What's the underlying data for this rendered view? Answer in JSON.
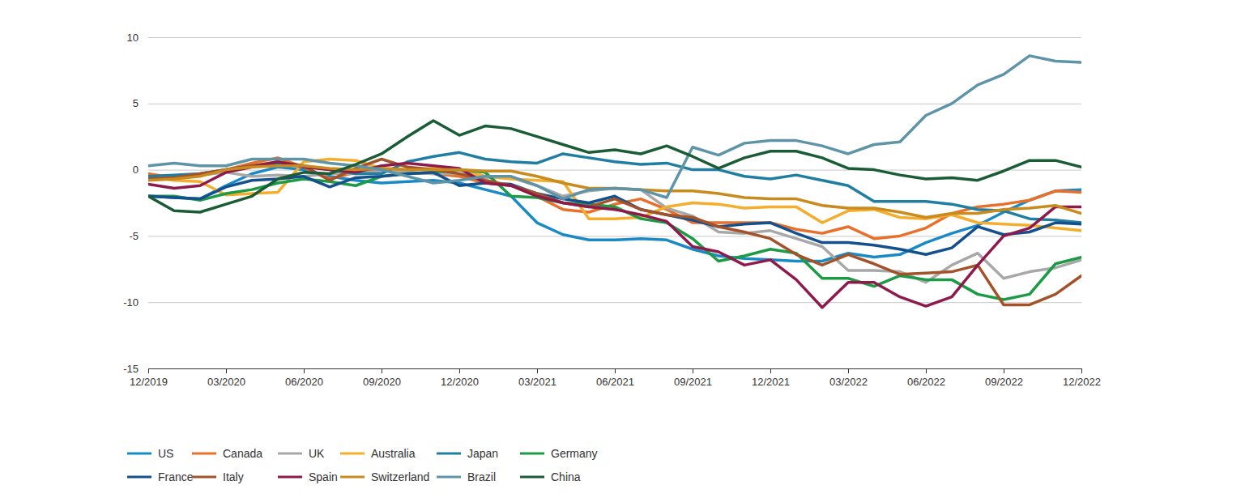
{
  "chart_data": {
    "type": "line",
    "categories": [
      "12/2019",
      null,
      null,
      "03/2020",
      null,
      null,
      "06/2020",
      null,
      null,
      "09/2020",
      null,
      null,
      "12/2020",
      null,
      null,
      "03/2021",
      null,
      null,
      "06/2021",
      null,
      null,
      "09/2021",
      null,
      null,
      "12/2021",
      null,
      null,
      "03/2022",
      null,
      null,
      "06/2022",
      null,
      null,
      "09/2022",
      null,
      null,
      "12/2022"
    ],
    "ylim": [
      -15,
      10
    ],
    "yticks": [
      -15,
      -10,
      -5,
      0,
      5,
      10
    ],
    "grid": true,
    "legend": "bottom",
    "series": [
      {
        "name": "US",
        "color": "#1a8ac6",
        "values": [
          -2.0,
          -2.1,
          -2.2,
          -1.2,
          -0.3,
          0.2,
          0.0,
          -0.5,
          -0.8,
          -1.0,
          -0.9,
          -0.8,
          -1.0,
          -1.5,
          -2.0,
          -4.0,
          -4.9,
          -5.3,
          -5.3,
          -5.2,
          -5.3,
          -6.0,
          -6.5,
          -6.7,
          -6.8,
          -6.9,
          -6.9,
          -6.3,
          -6.6,
          -6.4,
          -5.5,
          -4.8,
          -4.2,
          -3.2,
          -2.3,
          -1.6,
          -1.5
        ]
      },
      {
        "name": "Canada",
        "color": "#e8702a",
        "values": [
          -0.3,
          -0.6,
          -0.4,
          0.0,
          0.5,
          0.9,
          0.2,
          -0.7,
          -0.2,
          0.0,
          -0.2,
          -0.3,
          -0.5,
          -1.0,
          -1.2,
          -2.0,
          -3.0,
          -3.2,
          -2.6,
          -2.2,
          -3.0,
          -4.0,
          -4.0,
          -4.0,
          -4.0,
          -4.5,
          -4.8,
          -4.3,
          -5.2,
          -5.0,
          -4.4,
          -3.3,
          -2.8,
          -2.6,
          -2.3,
          -1.6,
          -1.7
        ]
      },
      {
        "name": "UK",
        "color": "#a8a8a8",
        "values": [
          -0.6,
          -0.5,
          -0.4,
          -0.2,
          -0.5,
          -0.4,
          -0.5,
          -0.3,
          -0.3,
          -0.1,
          -0.2,
          -0.3,
          -0.3,
          -0.6,
          -0.6,
          -1.2,
          -2.0,
          -1.6,
          -1.4,
          -1.5,
          -2.9,
          -3.5,
          -4.7,
          -4.8,
          -4.6,
          -5.2,
          -5.8,
          -7.6,
          -7.6,
          -7.7,
          -8.5,
          -7.2,
          -6.3,
          -8.2,
          -7.7,
          -7.4,
          -6.8
        ]
      },
      {
        "name": "Australia",
        "color": "#f5ad2e",
        "values": [
          -0.5,
          -0.8,
          -0.9,
          -1.9,
          -1.8,
          -1.7,
          0.6,
          0.8,
          0.7,
          0.1,
          0.0,
          0.1,
          0.0,
          -0.5,
          -0.7,
          -0.8,
          -0.9,
          -3.7,
          -3.7,
          -3.6,
          -2.8,
          -2.5,
          -2.6,
          -2.9,
          -2.8,
          -2.8,
          -4.0,
          -3.1,
          -3.0,
          -3.6,
          -3.7,
          -3.4,
          -4.0,
          -4.1,
          -4.2,
          -4.4,
          -4.6
        ]
      },
      {
        "name": "Japan",
        "color": "#1f7ea1",
        "values": [
          -0.5,
          -0.4,
          -0.3,
          0.0,
          0.3,
          0.4,
          0.3,
          0.0,
          -0.3,
          -0.3,
          0.6,
          1.0,
          1.3,
          0.8,
          0.6,
          0.5,
          1.2,
          0.9,
          0.6,
          0.4,
          0.5,
          0.0,
          0.0,
          -0.5,
          -0.7,
          -0.4,
          -0.8,
          -1.2,
          -2.4,
          -2.4,
          -2.4,
          -2.6,
          -3.0,
          -3.1,
          -3.7,
          -3.8,
          -4.0
        ]
      },
      {
        "name": "Germany",
        "color": "#1d9a44",
        "values": [
          -2.0,
          -2.0,
          -2.3,
          -1.8,
          -1.5,
          -1.0,
          -0.7,
          -0.9,
          -1.2,
          -0.5,
          -0.3,
          -0.2,
          0.0,
          -0.2,
          -2.0,
          -2.1,
          -2.5,
          -2.6,
          -2.8,
          -3.7,
          -4.0,
          -5.2,
          -6.9,
          -6.5,
          -6.0,
          -6.3,
          -8.2,
          -8.2,
          -8.8,
          -8.0,
          -8.3,
          -8.3,
          -9.4,
          -9.8,
          -9.4,
          -7.1,
          -6.6
        ]
      },
      {
        "name": "France",
        "color": "#13508d",
        "values": [
          -2.0,
          -2.1,
          -2.2,
          -1.3,
          -0.8,
          -0.7,
          -0.5,
          -1.3,
          -0.6,
          -0.5,
          -0.3,
          -0.2,
          -1.2,
          -1.0,
          -1.1,
          -1.8,
          -2.2,
          -2.5,
          -2.0,
          -3.0,
          -3.4,
          -3.8,
          -4.3,
          -4.1,
          -4.0,
          -4.8,
          -5.5,
          -5.5,
          -5.7,
          -6.0,
          -6.4,
          -5.9,
          -4.3,
          -4.9,
          -4.7,
          -4.0,
          -4.1
        ]
      },
      {
        "name": "Italy",
        "color": "#a3522a",
        "values": [
          -0.7,
          -0.6,
          -0.3,
          0.0,
          0.3,
          0.6,
          0.3,
          -0.8,
          0.1,
          0.8,
          0.2,
          0.0,
          -0.3,
          -0.8,
          -1.2,
          -1.8,
          -2.5,
          -2.8,
          -2.2,
          -3.0,
          -3.4,
          -3.6,
          -4.3,
          -4.7,
          -5.2,
          -6.4,
          -7.2,
          -6.4,
          -7.1,
          -7.9,
          -7.8,
          -7.7,
          -7.2,
          -10.2,
          -10.2,
          -9.4,
          -8.0
        ]
      },
      {
        "name": "Spain",
        "color": "#8e1a4c",
        "values": [
          -1.1,
          -1.4,
          -1.2,
          -0.2,
          0.2,
          0.6,
          0.2,
          0.0,
          -0.2,
          0.3,
          0.5,
          0.3,
          0.1,
          -1.0,
          -1.2,
          -2.0,
          -2.5,
          -2.8,
          -3.0,
          -3.4,
          -3.9,
          -5.8,
          -6.2,
          -7.2,
          -6.8,
          -8.3,
          -10.4,
          -8.5,
          -8.5,
          -9.6,
          -10.3,
          -9.6,
          -7.2,
          -5.0,
          -4.4,
          -2.8,
          -2.8
        ]
      },
      {
        "name": "Switzerland",
        "color": "#c98b1e",
        "values": [
          -0.8,
          -0.7,
          -0.5,
          0.0,
          0.2,
          0.3,
          0.3,
          0.1,
          0.0,
          0.1,
          0.0,
          0.0,
          0.0,
          -0.1,
          -0.1,
          -0.5,
          -1.0,
          -1.4,
          -1.4,
          -1.5,
          -1.6,
          -1.6,
          -1.8,
          -2.1,
          -2.2,
          -2.2,
          -2.7,
          -2.9,
          -2.9,
          -3.2,
          -3.6,
          -3.3,
          -3.3,
          -3.0,
          -2.9,
          -2.7,
          -3.3
        ]
      },
      {
        "name": "Brazil",
        "color": "#5e94a8",
        "values": [
          0.3,
          0.5,
          0.3,
          0.3,
          0.8,
          0.8,
          0.8,
          0.5,
          0.3,
          0.0,
          -0.5,
          -1.0,
          -0.8,
          -0.5,
          -0.5,
          -1.2,
          -2.2,
          -1.5,
          -1.4,
          -1.5,
          -2.1,
          1.7,
          1.1,
          2.0,
          2.2,
          2.2,
          1.8,
          1.2,
          1.9,
          2.1,
          4.1,
          5.0,
          6.4,
          7.2,
          8.6,
          8.2,
          8.1
        ]
      },
      {
        "name": "China",
        "color": "#1a5c35",
        "values": [
          -2.0,
          -3.1,
          -3.2,
          -2.6,
          -2.0,
          -0.7,
          -0.2,
          -0.3,
          0.4,
          1.2,
          2.5,
          3.7,
          2.6,
          3.3,
          3.1,
          2.5,
          1.9,
          1.3,
          1.5,
          1.2,
          1.8,
          1.0,
          0.1,
          0.9,
          1.4,
          1.4,
          0.9,
          0.1,
          0.0,
          -0.4,
          -0.7,
          -0.6,
          -0.8,
          -0.1,
          0.7,
          0.7,
          0.2
        ]
      }
    ]
  }
}
